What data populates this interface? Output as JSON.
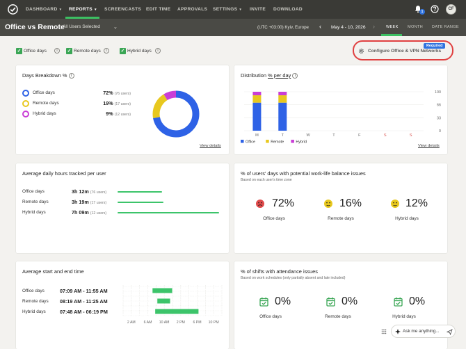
{
  "nav": {
    "items": [
      {
        "label": "DASHBOARD",
        "caret": "▾"
      },
      {
        "label": "REPORTS",
        "caret": "▾"
      },
      {
        "label": "SCREENCASTS"
      },
      {
        "label": "EDIT TIME"
      },
      {
        "label": "APPROVALS"
      },
      {
        "label": "SETTINGS",
        "caret": "▾"
      },
      {
        "label": "INVITE"
      },
      {
        "label": "DOWNLOAD"
      }
    ],
    "notification_count": "1",
    "avatar_initials": "CF",
    "accent_color": "#3cbf62"
  },
  "subheader": {
    "title": "Office vs Remote",
    "users_select": "All Users Selected",
    "timezone": "(UTC +03:00) Kyiv, Europe",
    "date_range": "May 4 - 10, 2026",
    "range_tabs": [
      "WEEK",
      "MONTH",
      "DATE RANGE"
    ],
    "active_range": "WEEK"
  },
  "filters": [
    {
      "label": "Office days",
      "checked": true
    },
    {
      "label": "Remote days",
      "checked": true
    },
    {
      "label": "Hybrid days",
      "checked": true
    }
  ],
  "config": {
    "badge": "Required",
    "label": "Configure Office & VPN Networks"
  },
  "days_breakdown": {
    "title": "Days Breakdown %",
    "rows": [
      {
        "label": "Office days",
        "pct": "72%",
        "users": "(76 users)",
        "color": "#2e62e6",
        "value": 72
      },
      {
        "label": "Remote days",
        "pct": "19%",
        "users": "(17 users)",
        "color": "#e8c81e",
        "value": 19
      },
      {
        "label": "Hybrid days",
        "pct": "9%",
        "users": "(12 users)",
        "color": "#c93ed6",
        "value": 9
      }
    ],
    "view_details": "View details"
  },
  "distribution": {
    "title_prefix": "Distribution ",
    "title_link": "% per day",
    "view_details": "View details"
  },
  "chart_data": {
    "type": "bar",
    "stacked": true,
    "categories": [
      "M",
      "T",
      "W",
      "T",
      "F",
      "S",
      "S"
    ],
    "series": [
      {
        "name": "Office",
        "color": "#2e62e6",
        "values": [
          72,
          72,
          0,
          0,
          0,
          0,
          0
        ]
      },
      {
        "name": "Remote",
        "color": "#e8c81e",
        "values": [
          19,
          19,
          0,
          0,
          0,
          0,
          0
        ]
      },
      {
        "name": "Hybrid",
        "color": "#c93ed6",
        "values": [
          9,
          9,
          0,
          0,
          0,
          0,
          0
        ]
      }
    ],
    "yticks": [
      "100",
      "66",
      "33",
      "0"
    ],
    "ylim": [
      0,
      100
    ],
    "weekend_label_color": "#d9534f",
    "legend_position": "bottom-left"
  },
  "hours": {
    "title": "Average daily hours tracked per user",
    "rows": [
      {
        "label": "Office days",
        "value": "3h 12m",
        "users": "(76 users)",
        "fraction": 0.44
      },
      {
        "label": "Remote days",
        "value": "3h 19m",
        "users": "(17 users)",
        "fraction": 0.45
      },
      {
        "label": "Hybrid days",
        "value": "7h 09m",
        "users": "(12 users)",
        "fraction": 1.0
      }
    ]
  },
  "worklife": {
    "title": "% of users' days with potential work-life balance issues",
    "subtitle": "Based on each user's time zone",
    "stats": [
      {
        "pct": "72%",
        "label": "Office days",
        "icon": "sad-face-icon",
        "color": "#e04a4a"
      },
      {
        "pct": "16%",
        "label": "Remote days",
        "icon": "neutral-face-icon",
        "color": "#e8c81e"
      },
      {
        "pct": "12%",
        "label": "Hybrid days",
        "icon": "neutral-face-icon",
        "color": "#e8c81e"
      }
    ]
  },
  "startend": {
    "title": "Average start and end time",
    "rows": [
      {
        "label": "Office days",
        "value": "07:09 AM - 11:55 AM",
        "start_hour": 7.15,
        "end_hour": 11.92
      },
      {
        "label": "Remote days",
        "value": "08:19 AM - 11:25 AM",
        "start_hour": 8.32,
        "end_hour": 11.42
      },
      {
        "label": "Hybrid days",
        "value": "07:48 AM - 06:19 PM",
        "start_hour": 7.8,
        "end_hour": 18.32
      }
    ],
    "axis_labels": [
      "2 AM",
      "6 AM",
      "10 AM",
      "2 PM",
      "6 PM",
      "10 PM"
    ]
  },
  "attendance": {
    "title": "% of shifts with attendance issues",
    "subtitle": "Based on work schedules (only partially absent and late included)",
    "stats": [
      {
        "pct": "0%",
        "label": "Office days"
      },
      {
        "pct": "0%",
        "label": "Remote days"
      },
      {
        "pct": "0%",
        "label": "Hybrid days"
      }
    ]
  },
  "assistant": {
    "placeholder": "Ask me anything..."
  }
}
